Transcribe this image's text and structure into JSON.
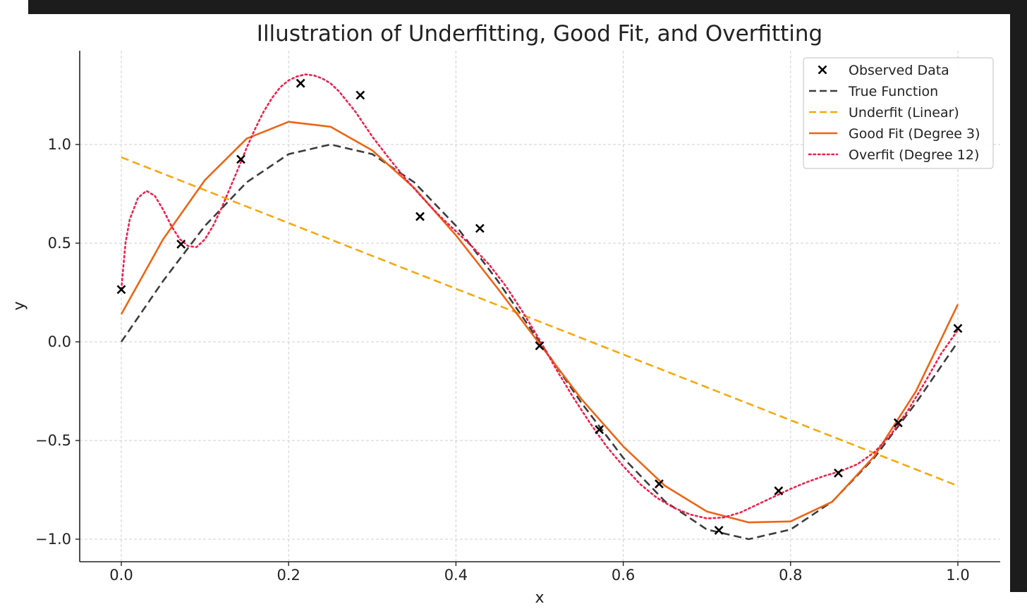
{
  "chart_data": {
    "type": "line",
    "title": "Illustration of Underfitting, Good Fit, and Overfitting",
    "xlabel": "x",
    "ylabel": "y",
    "xlim": [
      -0.05,
      1.05
    ],
    "ylim": [
      -1.12,
      1.47
    ],
    "xticks": [
      0.0,
      0.2,
      0.4,
      0.6,
      0.8,
      1.0
    ],
    "xtick_labels": [
      "0.0",
      "0.2",
      "0.4",
      "0.6",
      "0.8",
      "1.0"
    ],
    "yticks": [
      -1.0,
      -0.5,
      0.0,
      0.5,
      1.0
    ],
    "ytick_labels": [
      "−1.0",
      "−0.5",
      "0.0",
      "0.5",
      "1.0"
    ],
    "grid": true,
    "legend_position": "top-right",
    "observed": {
      "name": "Observed Data",
      "color": "#000000",
      "x": [
        0.0,
        0.0714,
        0.1429,
        0.2143,
        0.2857,
        0.3571,
        0.4286,
        0.5,
        0.5714,
        0.6429,
        0.7143,
        0.7857,
        0.8571,
        0.9286,
        1.0
      ],
      "y": [
        0.265,
        0.495,
        0.925,
        1.31,
        1.25,
        0.635,
        0.575,
        -0.02,
        -0.445,
        -0.72,
        -0.955,
        -0.755,
        -0.665,
        -0.41,
        0.068
      ]
    },
    "series": [
      {
        "name": "True Function",
        "color": "#3d3d3d",
        "style": "dashed",
        "x": [
          0,
          0.05,
          0.1,
          0.15,
          0.2,
          0.25,
          0.3,
          0.35,
          0.4,
          0.45,
          0.5,
          0.55,
          0.6,
          0.65,
          0.7,
          0.75,
          0.8,
          0.85,
          0.9,
          0.95,
          1.0
        ],
        "y": [
          0,
          0.309,
          0.588,
          0.809,
          0.951,
          1.0,
          0.951,
          0.809,
          0.588,
          0.309,
          0,
          -0.309,
          -0.588,
          -0.809,
          -0.951,
          -1.0,
          -0.951,
          -0.809,
          -0.588,
          -0.309,
          0
        ]
      },
      {
        "name": "Underfit (Linear)",
        "color": "#f5a90c",
        "style": "dashed",
        "x": [
          0,
          1
        ],
        "y": [
          0.935,
          -0.73
        ]
      },
      {
        "name": "Good Fit (Degree 3)",
        "color": "#ee6414",
        "style": "solid",
        "x": [
          0,
          0.05,
          0.1,
          0.15,
          0.2,
          0.25,
          0.3,
          0.35,
          0.4,
          0.45,
          0.5,
          0.55,
          0.6,
          0.65,
          0.7,
          0.75,
          0.8,
          0.85,
          0.9,
          0.95,
          1.0
        ],
        "y": [
          0.14,
          0.52,
          0.82,
          1.03,
          1.115,
          1.09,
          0.97,
          0.78,
          0.54,
          0.27,
          -0.01,
          -0.29,
          -0.53,
          -0.73,
          -0.86,
          -0.915,
          -0.91,
          -0.81,
          -0.58,
          -0.25,
          0.19
        ]
      },
      {
        "name": "Overfit (Degree 12)",
        "color": "#f0204c",
        "style": "dotted",
        "x": [
          0,
          0.005,
          0.01,
          0.02,
          0.03,
          0.04,
          0.05,
          0.06,
          0.07,
          0.08,
          0.09,
          0.1,
          0.11,
          0.12,
          0.13,
          0.14,
          0.15,
          0.16,
          0.17,
          0.18,
          0.19,
          0.2,
          0.21,
          0.22,
          0.23,
          0.24,
          0.25,
          0.26,
          0.28,
          0.3,
          0.32,
          0.34,
          0.36,
          0.38,
          0.4,
          0.42,
          0.44,
          0.46,
          0.48,
          0.5,
          0.52,
          0.54,
          0.56,
          0.58,
          0.6,
          0.62,
          0.64,
          0.66,
          0.68,
          0.7,
          0.72,
          0.74,
          0.76,
          0.78,
          0.8,
          0.82,
          0.84,
          0.86,
          0.88,
          0.9,
          0.92,
          0.94,
          0.96,
          0.98,
          1.0
        ],
        "y": [
          0.265,
          0.5,
          0.62,
          0.73,
          0.765,
          0.74,
          0.67,
          0.585,
          0.52,
          0.485,
          0.48,
          0.52,
          0.59,
          0.68,
          0.78,
          0.88,
          0.985,
          1.08,
          1.165,
          1.235,
          1.29,
          1.325,
          1.345,
          1.355,
          1.35,
          1.335,
          1.31,
          1.27,
          1.165,
          1.04,
          0.93,
          0.825,
          0.73,
          0.64,
          0.56,
          0.48,
          0.39,
          0.28,
          0.15,
          0.01,
          -0.14,
          -0.28,
          -0.41,
          -0.53,
          -0.63,
          -0.72,
          -0.79,
          -0.84,
          -0.875,
          -0.895,
          -0.89,
          -0.865,
          -0.825,
          -0.785,
          -0.745,
          -0.71,
          -0.68,
          -0.655,
          -0.62,
          -0.56,
          -0.47,
          -0.35,
          -0.21,
          -0.06,
          0.06
        ]
      }
    ]
  }
}
